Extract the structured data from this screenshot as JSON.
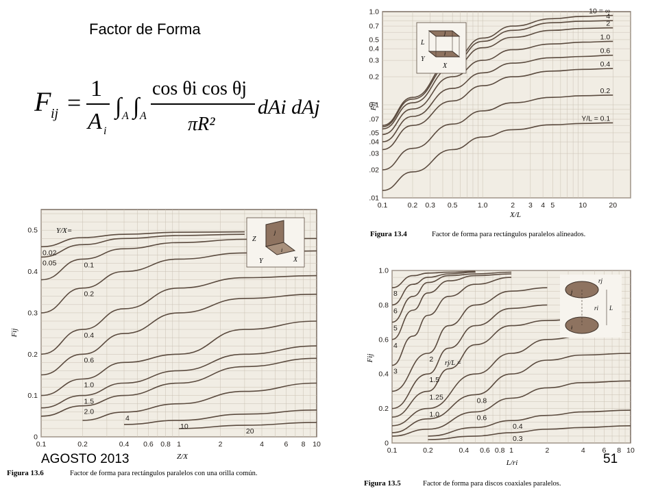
{
  "slide": {
    "title": "Factor de Forma",
    "footer_left": "AGOSTO 2013",
    "page_number": "51"
  },
  "formula": {
    "lhs_main": "F",
    "lhs_sub": "ij",
    "equals": "=",
    "one": "1",
    "area_main": "A",
    "area_sub": "i",
    "integral_1_sub": "A",
    "integral_2_sub": "A",
    "numerator": "cos θi cos θj",
    "denominator": "πR²",
    "differentials": "dAi dAj",
    "integral_symbol": "∫"
  },
  "colors": {
    "paper": "#f1ede4",
    "grid": "#c9c0b2",
    "curve": "#5a4a3e",
    "text": "#1f1a16",
    "inset": "#8e7360"
  },
  "chart_data": [
    {
      "id": "figure-13-4",
      "type": "line",
      "caption_label": "Figura 13.4",
      "caption_text": "Factor de forma para rectángulos paralelos alineados.",
      "xlabel": "X/L",
      "ylabel": "Fij",
      "xscale": "log",
      "yscale": "log",
      "xlim": [
        0.1,
        30
      ],
      "ylim": [
        0.01,
        1.0
      ],
      "xticks": [
        0.1,
        0.2,
        0.3,
        0.5,
        1.0,
        2,
        3,
        4,
        5,
        10,
        20
      ],
      "xtick_labels": [
        "0.1",
        "0.2",
        "0.3",
        "0.5",
        "1.0",
        "2",
        "3",
        "4",
        "5",
        "10",
        "20"
      ],
      "yticks": [
        0.01,
        0.02,
        0.03,
        0.04,
        0.05,
        0.07,
        0.1,
        0.2,
        0.3,
        0.4,
        0.5,
        0.7,
        1.0
      ],
      "ytick_labels": [
        "0.01",
        "0.02",
        "0.03",
        "0.04",
        "0.05",
        "0.07",
        "0.1",
        "0.2",
        "0.3",
        "0.4",
        "0.5",
        "0.7",
        "1.0"
      ],
      "parameter_prefix": "Y/L = ",
      "inset_labels": [
        "L",
        "Y",
        "X",
        "i",
        "j"
      ],
      "series": [
        {
          "label": "10 = ∞",
          "x": [
            0.1,
            0.2,
            0.5,
            1,
            2,
            5,
            10,
            20
          ],
          "values": [
            0.06,
            0.12,
            0.3,
            0.52,
            0.7,
            0.84,
            0.89,
            0.91
          ]
        },
        {
          "label": "4",
          "x": [
            0.1,
            0.2,
            0.5,
            1,
            2,
            5,
            10,
            20
          ],
          "values": [
            0.058,
            0.115,
            0.28,
            0.48,
            0.63,
            0.76,
            0.79,
            0.8
          ]
        },
        {
          "label": "2",
          "x": [
            0.1,
            0.2,
            0.5,
            1,
            2,
            5,
            10,
            20
          ],
          "values": [
            0.055,
            0.105,
            0.25,
            0.41,
            0.53,
            0.63,
            0.66,
            0.67
          ]
        },
        {
          "label": "1.0",
          "x": [
            0.1,
            0.2,
            0.5,
            1,
            2,
            5,
            10,
            20
          ],
          "values": [
            0.048,
            0.09,
            0.2,
            0.3,
            0.39,
            0.45,
            0.47,
            0.48
          ]
        },
        {
          "label": "0.6",
          "x": [
            0.1,
            0.2,
            0.5,
            1,
            2,
            5,
            10,
            20
          ],
          "values": [
            0.04,
            0.075,
            0.15,
            0.22,
            0.28,
            0.32,
            0.33,
            0.34
          ]
        },
        {
          "label": "0.4",
          "x": [
            0.1,
            0.2,
            0.5,
            1,
            2,
            5,
            10,
            20
          ],
          "values": [
            0.033,
            0.06,
            0.11,
            0.16,
            0.2,
            0.23,
            0.24,
            0.245
          ]
        },
        {
          "label": "0.2",
          "x": [
            0.1,
            0.2,
            0.5,
            1,
            2,
            5,
            10,
            20
          ],
          "values": [
            0.02,
            0.034,
            0.062,
            0.086,
            0.105,
            0.12,
            0.125,
            0.127
          ]
        },
        {
          "label": "0.1",
          "x": [
            0.1,
            0.2,
            0.5,
            1,
            2,
            5,
            10,
            20
          ],
          "values": [
            0.012,
            0.019,
            0.033,
            0.045,
            0.054,
            0.061,
            0.063,
            0.064
          ]
        }
      ]
    },
    {
      "id": "figure-13-6",
      "type": "line",
      "caption_label": "Figura 13.6",
      "caption_text": "Factor de forma para rectángulos paralelos con una orilla común.",
      "xlabel": "Z/X",
      "ylabel": "Fij",
      "xscale": "log",
      "yscale": "linear",
      "xlim": [
        0.1,
        10
      ],
      "ylim": [
        0,
        0.55
      ],
      "xticks": [
        0.1,
        0.2,
        0.4,
        0.6,
        0.8,
        1,
        2,
        4,
        6,
        8,
        10
      ],
      "xtick_labels": [
        "0.1",
        "0.2",
        "0.4",
        "0.6",
        "0.8",
        "1",
        "2",
        "4",
        "6",
        "8",
        "10"
      ],
      "yticks": [
        0,
        0.1,
        0.2,
        0.3,
        0.4,
        0.5
      ],
      "ytick_labels": [
        "0",
        "0.1",
        "0.2",
        "0.3",
        "0.4",
        "0.5"
      ],
      "parameter_prefix": "Y/X=",
      "inset_labels": [
        "Z",
        "Y",
        "X",
        "i",
        "j"
      ],
      "series": [
        {
          "label": "0.02",
          "x": [
            0.1,
            0.2,
            0.4,
            1,
            3
          ],
          "values": [
            0.46,
            0.482,
            0.49,
            0.495,
            0.496
          ]
        },
        {
          "label": "0.05",
          "x": [
            0.1,
            0.2,
            0.4,
            1,
            3
          ],
          "values": [
            0.435,
            0.465,
            0.48,
            0.487,
            0.49
          ]
        },
        {
          "label": "0.1",
          "x": [
            0.1,
            0.2,
            0.4,
            1,
            3,
            10
          ],
          "values": [
            0.38,
            0.43,
            0.455,
            0.47,
            0.478,
            0.48
          ]
        },
        {
          "label": "0.2",
          "x": [
            0.1,
            0.2,
            0.4,
            1,
            3,
            10
          ],
          "values": [
            0.3,
            0.36,
            0.4,
            0.43,
            0.445,
            0.45
          ]
        },
        {
          "label": "0.4",
          "x": [
            0.1,
            0.2,
            0.4,
            1,
            3,
            10
          ],
          "values": [
            0.2,
            0.26,
            0.31,
            0.36,
            0.385,
            0.39
          ]
        },
        {
          "label": "0.6",
          "x": [
            0.1,
            0.2,
            0.4,
            1,
            3,
            10
          ],
          "values": [
            0.15,
            0.2,
            0.25,
            0.3,
            0.335,
            0.345
          ]
        },
        {
          "label": "1.0",
          "x": [
            0.1,
            0.2,
            0.4,
            1,
            3,
            10
          ],
          "values": [
            0.1,
            0.14,
            0.18,
            0.2,
            0.26,
            0.28
          ]
        },
        {
          "label": "1.5",
          "x": [
            0.1,
            0.2,
            0.4,
            1,
            3,
            10
          ],
          "values": [
            0.07,
            0.1,
            0.13,
            0.16,
            0.2,
            0.22
          ]
        },
        {
          "label": "2.0",
          "x": [
            0.1,
            0.2,
            0.4,
            1,
            3,
            10
          ],
          "values": [
            0.05,
            0.075,
            0.1,
            0.13,
            0.17,
            0.19
          ]
        },
        {
          "label": "4",
          "x": [
            0.2,
            0.4,
            1,
            3,
            10
          ],
          "values": [
            0.04,
            0.06,
            0.08,
            0.11,
            0.13
          ]
        },
        {
          "label": "10",
          "x": [
            0.4,
            1,
            3,
            10
          ],
          "values": [
            0.03,
            0.04,
            0.055,
            0.065
          ]
        },
        {
          "label": "20",
          "x": [
            1,
            3,
            10
          ],
          "values": [
            0.02,
            0.028,
            0.035
          ]
        }
      ]
    },
    {
      "id": "figure-13-5",
      "type": "line",
      "caption_label": "Figura 13.5",
      "caption_text": "Factor de forma para discos coaxiales paralelos.",
      "xlabel": "L/ri",
      "ylabel": "Fij",
      "xscale": "log",
      "yscale": "linear",
      "xlim": [
        0.1,
        10
      ],
      "ylim": [
        0,
        1.0
      ],
      "xticks": [
        0.1,
        0.2,
        0.4,
        0.6,
        0.8,
        1,
        2,
        4,
        6,
        8,
        10
      ],
      "xtick_labels": [
        "0.1",
        "0.2",
        "0.4",
        "0.6",
        "0.8",
        "1",
        "2",
        "4",
        "6",
        "8",
        "10"
      ],
      "yticks": [
        0,
        0.2,
        0.4,
        0.6,
        0.8,
        1.0
      ],
      "ytick_labels": [
        "0",
        "0.2",
        "0.4",
        "0.6",
        "0.8",
        "1.0"
      ],
      "parameter_prefix": "rj/L = ",
      "inset_labels": [
        "rj",
        "ri",
        "L",
        "j",
        "i"
      ],
      "series": [
        {
          "label": "8",
          "x": [
            0.1,
            0.15,
            0.2,
            0.3,
            0.5
          ],
          "values": [
            0.9,
            0.97,
            0.985,
            0.99,
            0.995
          ]
        },
        {
          "label": "6",
          "x": [
            0.1,
            0.15,
            0.2,
            0.3,
            0.5
          ],
          "values": [
            0.8,
            0.92,
            0.96,
            0.98,
            0.99
          ]
        },
        {
          "label": "5",
          "x": [
            0.1,
            0.15,
            0.2,
            0.3,
            0.5,
            1
          ],
          "values": [
            0.7,
            0.85,
            0.93,
            0.97,
            0.98,
            0.99
          ]
        },
        {
          "label": "4",
          "x": [
            0.1,
            0.15,
            0.2,
            0.3,
            0.5,
            1
          ],
          "values": [
            0.6,
            0.77,
            0.87,
            0.94,
            0.97,
            0.98
          ]
        },
        {
          "label": "3",
          "x": [
            0.1,
            0.15,
            0.2,
            0.3,
            0.5,
            1
          ],
          "values": [
            0.45,
            0.62,
            0.74,
            0.85,
            0.92,
            0.96
          ]
        },
        {
          "label": "2",
          "x": [
            0.1,
            0.2,
            0.3,
            0.5,
            1,
            2
          ],
          "values": [
            0.3,
            0.52,
            0.68,
            0.8,
            0.88,
            0.9
          ]
        },
        {
          "label": "1.5",
          "x": [
            0.1,
            0.2,
            0.3,
            0.5,
            1,
            2
          ],
          "values": [
            0.2,
            0.4,
            0.55,
            0.68,
            0.78,
            0.8
          ]
        },
        {
          "label": "1.25",
          "x": [
            0.1,
            0.2,
            0.3,
            0.5,
            1,
            2,
            4
          ],
          "values": [
            0.15,
            0.3,
            0.43,
            0.57,
            0.68,
            0.71,
            0.72
          ]
        },
        {
          "label": "1.0",
          "x": [
            0.1,
            0.2,
            0.5,
            1,
            2,
            4
          ],
          "values": [
            0.1,
            0.2,
            0.4,
            0.52,
            0.6,
            0.62
          ]
        },
        {
          "label": "0.8",
          "x": [
            0.1,
            0.2,
            0.5,
            1,
            2,
            4,
            10
          ],
          "values": [
            0.06,
            0.14,
            0.28,
            0.4,
            0.48,
            0.51,
            0.52
          ]
        },
        {
          "label": "0.6",
          "x": [
            0.1,
            0.2,
            0.5,
            1,
            2,
            4,
            10
          ],
          "values": [
            0.04,
            0.08,
            0.18,
            0.26,
            0.32,
            0.35,
            0.36
          ]
        },
        {
          "label": "0.4",
          "x": [
            0.2,
            0.5,
            1,
            2,
            4,
            10
          ],
          "values": [
            0.04,
            0.09,
            0.13,
            0.16,
            0.18,
            0.19
          ]
        },
        {
          "label": "0.3",
          "x": [
            0.2,
            0.5,
            1,
            2,
            4,
            10
          ],
          "values": [
            0.02,
            0.04,
            0.06,
            0.08,
            0.09,
            0.1
          ]
        }
      ]
    }
  ]
}
